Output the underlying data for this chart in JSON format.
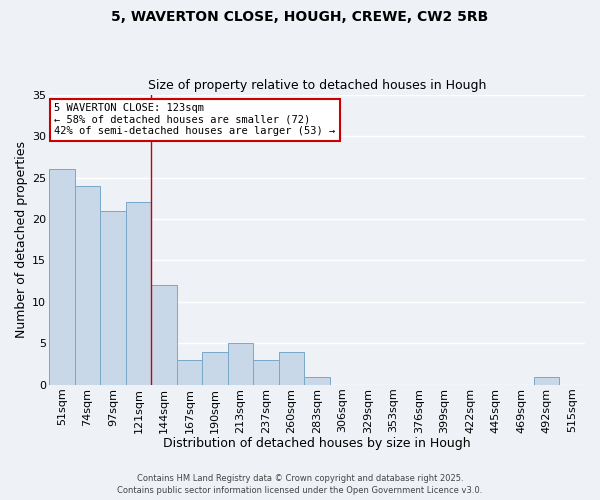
{
  "title1": "5, WAVERTON CLOSE, HOUGH, CREWE, CW2 5RB",
  "title2": "Size of property relative to detached houses in Hough",
  "bar_labels": [
    "51sqm",
    "74sqm",
    "97sqm",
    "121sqm",
    "144sqm",
    "167sqm",
    "190sqm",
    "213sqm",
    "237sqm",
    "260sqm",
    "283sqm",
    "306sqm",
    "329sqm",
    "353sqm",
    "376sqm",
    "399sqm",
    "422sqm",
    "445sqm",
    "469sqm",
    "492sqm",
    "515sqm"
  ],
  "bar_values": [
    26,
    24,
    21,
    22,
    12,
    3,
    4,
    5,
    3,
    4,
    1,
    0,
    0,
    0,
    0,
    0,
    0,
    0,
    0,
    1,
    0
  ],
  "bar_color": "#c8d8e8",
  "bar_edge_color": "#7aa8c8",
  "xlabel": "Distribution of detached houses by size in Hough",
  "ylabel": "Number of detached properties",
  "ylim": [
    0,
    35
  ],
  "yticks": [
    0,
    5,
    10,
    15,
    20,
    25,
    30,
    35
  ],
  "annotation_title": "5 WAVERTON CLOSE: 123sqm",
  "annotation_line1": "← 58% of detached houses are smaller (72)",
  "annotation_line2": "42% of semi-detached houses are larger (53) →",
  "annotation_box_facecolor": "#ffffff",
  "annotation_box_edgecolor": "#cc0000",
  "vline_x_index": 3,
  "footer1": "Contains HM Land Registry data © Crown copyright and database right 2025.",
  "footer2": "Contains public sector information licensed under the Open Government Licence v3.0.",
  "bg_color": "#eef2f7",
  "grid_color": "#ffffff"
}
